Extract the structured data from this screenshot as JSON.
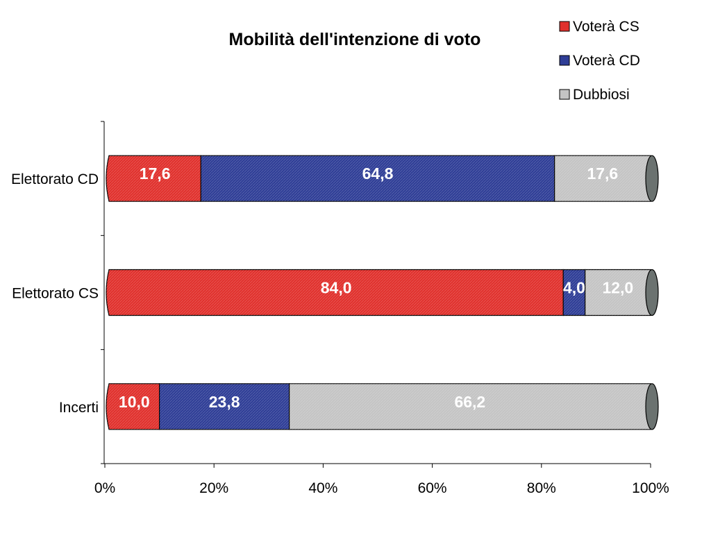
{
  "chart_data": {
    "type": "bar",
    "orientation": "horizontal",
    "stacked": "percent",
    "title": "Mobilità dell'intenzione di voto",
    "categories": [
      "Elettorato CD",
      "Elettorato CS",
      "Incerti"
    ],
    "series": [
      {
        "name": "Voterà CS",
        "color": "#e0302c",
        "values": [
          17.6,
          84.0,
          10.0
        ],
        "labels": [
          "17,6",
          "84,0",
          "10,0"
        ]
      },
      {
        "name": "Voterà CD",
        "color": "#2e3d96",
        "values": [
          64.8,
          4.0,
          23.8
        ],
        "labels": [
          "64,8",
          "4,0",
          "23,8"
        ]
      },
      {
        "name": "Dubbiosi",
        "color": "#c4c4c4",
        "values": [
          17.6,
          12.0,
          66.2
        ],
        "labels": [
          "17,6",
          "12,0",
          "66,2"
        ]
      }
    ],
    "x_ticks": [
      "0%",
      "20%",
      "40%",
      "60%",
      "80%",
      "100%"
    ],
    "xlim": [
      0,
      100
    ],
    "legend": "top-right",
    "grid": false,
    "end_cap_color": "#6b7270"
  }
}
